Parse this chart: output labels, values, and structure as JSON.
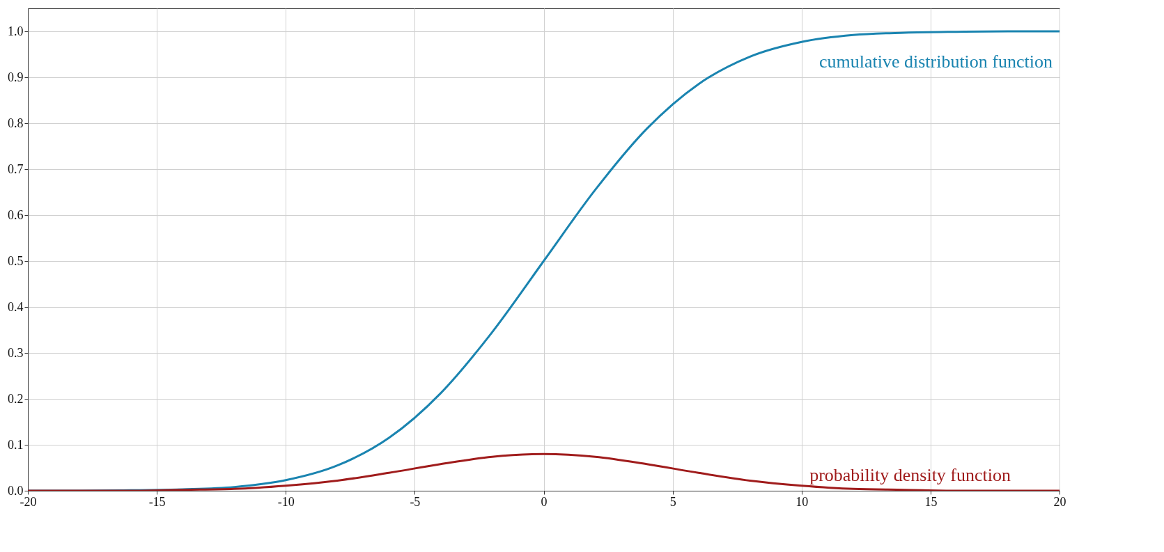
{
  "chart_data": {
    "type": "line",
    "x": [
      -20,
      -18,
      -16,
      -14,
      -12,
      -10,
      -8,
      -6,
      -4,
      -2,
      0,
      2,
      4,
      6,
      8,
      10,
      12,
      14,
      16,
      18,
      20
    ],
    "series": [
      {
        "name": "cumulative distribution function",
        "color": "#1a84b0",
        "values": [
          0.0,
          0.0,
          0.001,
          0.003,
          0.008,
          0.023,
          0.055,
          0.115,
          0.212,
          0.345,
          0.5,
          0.655,
          0.788,
          0.885,
          0.945,
          0.977,
          0.992,
          0.997,
          0.999,
          1.0,
          1.0
        ]
      },
      {
        "name": "probability density function",
        "color": "#a01c1c",
        "values": [
          0.0,
          0.0,
          0.0,
          0.002,
          0.004,
          0.011,
          0.022,
          0.039,
          0.058,
          0.074,
          0.08,
          0.074,
          0.058,
          0.039,
          0.022,
          0.011,
          0.004,
          0.002,
          0.0,
          0.0,
          0.0
        ]
      }
    ],
    "xlim": [
      -20,
      20
    ],
    "xticks": [
      -20,
      -15,
      -10,
      -5,
      0,
      5,
      10,
      15,
      20
    ],
    "ylim": [
      0,
      1.05
    ],
    "yticks": [
      {
        "value": 0,
        "label": "0.0"
      },
      0.1,
      0.2,
      0.3,
      0.4,
      0.5,
      0.6,
      0.7,
      0.8,
      0.9,
      {
        "value": 1,
        "label": "1.0"
      }
    ],
    "grid": true,
    "line_style": "solid",
    "marker": "none"
  }
}
